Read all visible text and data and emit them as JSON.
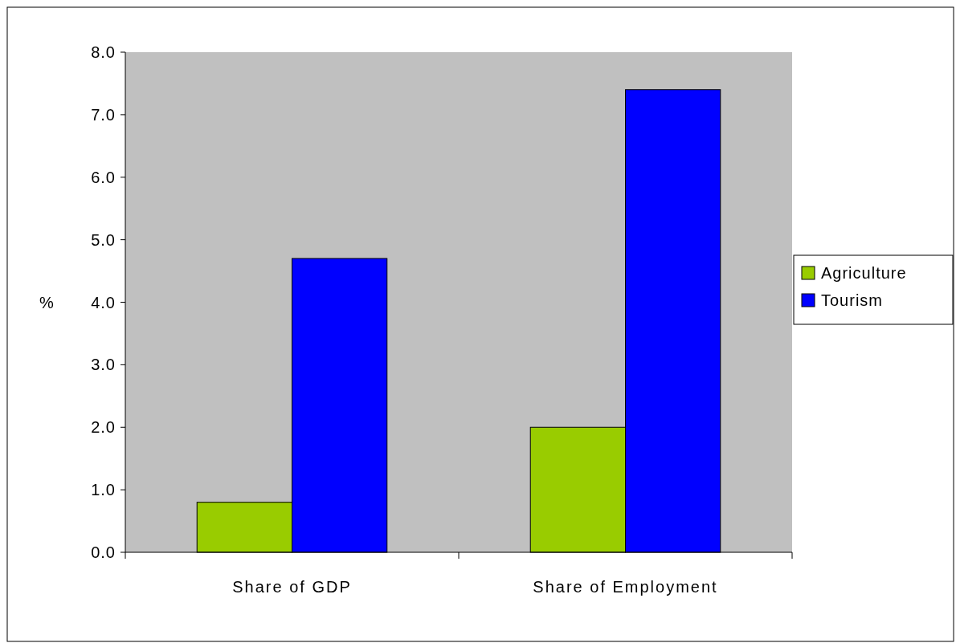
{
  "chart_data": {
    "type": "bar",
    "ylabel": "%",
    "categories": [
      "Share of GDP",
      "Share of Employment"
    ],
    "series": [
      {
        "name": "Agriculture",
        "color": "#99cc00",
        "values": [
          0.8,
          2.0
        ]
      },
      {
        "name": "Tourism",
        "color": "#0000ff",
        "values": [
          4.7,
          7.4
        ]
      }
    ],
    "ylim": [
      0,
      8
    ],
    "yticks": [
      {
        "value": 0,
        "label": "0.0"
      },
      {
        "value": 1,
        "label": "1.0"
      },
      {
        "value": 2,
        "label": "2.0"
      },
      {
        "value": 3,
        "label": "3.0"
      },
      {
        "value": 4,
        "label": "4.0"
      },
      {
        "value": 5,
        "label": "5.0"
      },
      {
        "value": 6,
        "label": "6.0"
      },
      {
        "value": 7,
        "label": "7.0"
      },
      {
        "value": 8,
        "label": "8.0"
      }
    ],
    "grid": false,
    "legend": "right"
  }
}
